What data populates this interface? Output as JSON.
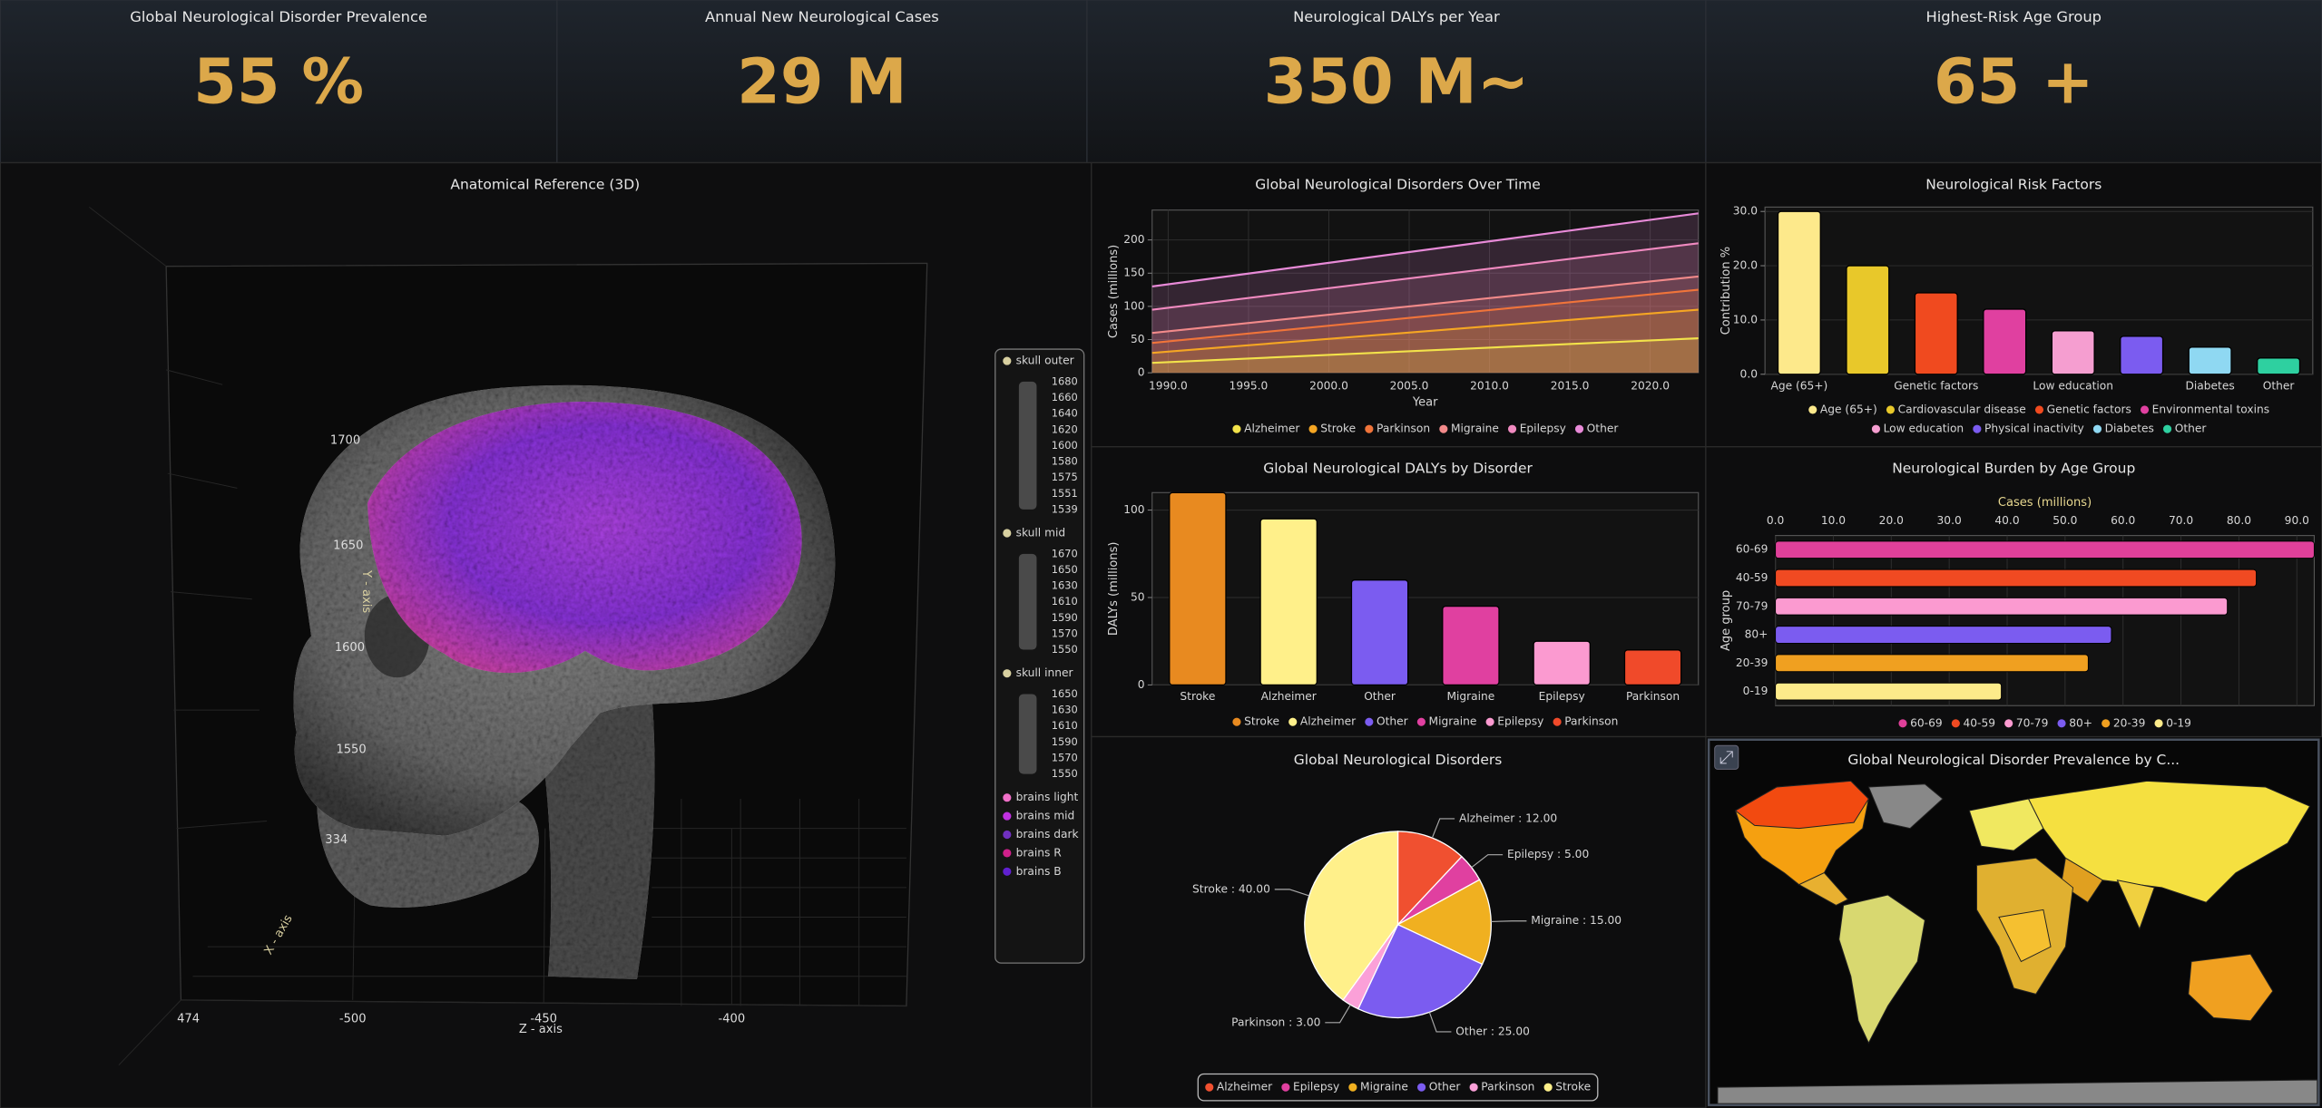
{
  "kpis": [
    {
      "title": "Global Neurological Disorder Prevalence",
      "value": "55 %"
    },
    {
      "title": "Annual New Neurological Cases",
      "value": "29 M"
    },
    {
      "title": "Neurological DALYs per Year",
      "value": "350 M~"
    },
    {
      "title": "Highest-Risk Age Group",
      "value": "65 +"
    }
  ],
  "anatomy": {
    "title": "Anatomical Reference (3D)",
    "y_axis": "Y - axis",
    "x_axis": "X - axis",
    "z_axis": "Z - axis",
    "y_ticks": [
      "1700",
      "1650",
      "1600",
      "1550",
      "334"
    ],
    "z_ticks": [
      "474",
      "-500",
      "-450",
      "-400"
    ],
    "legend": [
      {
        "name": "skull outer",
        "scale": [
          "1680",
          "1660",
          "1640",
          "1620",
          "1600",
          "1580",
          "1575",
          "1551",
          "1539"
        ]
      },
      {
        "name": "skull mid",
        "scale": [
          "1670",
          "1650",
          "1630",
          "1610",
          "1590",
          "1570",
          "1550"
        ]
      },
      {
        "name": "skull inner",
        "scale": [
          "1650",
          "1630",
          "1610",
          "1590",
          "1570",
          "1550"
        ]
      },
      {
        "name": "brains light",
        "color": "#f070c8"
      },
      {
        "name": "brains mid",
        "color": "#c030e0"
      },
      {
        "name": "brains dark",
        "color": "#7030c0"
      },
      {
        "name": "brains R",
        "color": "#d0208a"
      },
      {
        "name": "brains B",
        "color": "#6020d0"
      }
    ]
  },
  "chart_data": [
    {
      "type": "line",
      "title": "Global Neurological Disorders Over Time",
      "x_label": "Year",
      "y_label": "Cases (millions)",
      "x": [
        1989,
        2023
      ],
      "series": [
        {
          "name": "Alzheimer",
          "color": "#f2e24a",
          "values": [
            15,
            52
          ]
        },
        {
          "name": "Stroke",
          "color": "#f5a623",
          "values": [
            30,
            95
          ]
        },
        {
          "name": "Parkinson",
          "color": "#f0743a",
          "values": [
            45,
            125
          ]
        },
        {
          "name": "Migraine",
          "color": "#f28a8a",
          "values": [
            60,
            145
          ]
        },
        {
          "name": "Epilepsy",
          "color": "#f08ac0",
          "values": [
            95,
            195
          ]
        },
        {
          "name": "Other",
          "color": "#e88ad8",
          "values": [
            130,
            240
          ]
        }
      ],
      "xlim": [
        1989,
        2023
      ],
      "xticks": [
        {
          "value": 1990,
          "label": "1990.0"
        },
        {
          "value": 1995,
          "label": "1995.0"
        },
        {
          "value": 2000,
          "label": "2000.0"
        },
        {
          "value": 2005,
          "label": "2005.0"
        },
        {
          "value": 2010,
          "label": "2010.0"
        },
        {
          "value": 2015,
          "label": "2015.0"
        },
        {
          "value": 2020,
          "label": "2020.0"
        }
      ],
      "ylim": [
        0,
        245
      ],
      "yticks": [
        0,
        50,
        100,
        150,
        200
      ],
      "grid": true
    },
    {
      "type": "bar",
      "title": "Neurological Risk Factors",
      "y_label": "Contribution %",
      "categories": [
        "Age (65+)",
        "Cardiovascular disease",
        "Genetic factors",
        "Environmental toxins",
        "Low education",
        "Physical inactivity",
        "Diabetes",
        "Other"
      ],
      "values": [
        30,
        20,
        15,
        12,
        8,
        7,
        5,
        3
      ],
      "colors": [
        "#fde98b",
        "#e8c82a",
        "#f04a1f",
        "#e040a0",
        "#f59ed0",
        "#7b5cf0",
        "#8fd8f2",
        "#2ed0a0"
      ],
      "ylim": [
        0,
        30.8
      ],
      "yticks": [
        {
          "value": 0,
          "label": "0.0"
        },
        {
          "value": 10,
          "label": "10.0"
        },
        {
          "value": 20,
          "label": "20.0"
        },
        {
          "value": 30,
          "label": "30.0"
        }
      ],
      "grid": true
    },
    {
      "type": "bar",
      "title": "Global Neurological DALYs by Disorder",
      "y_label": "DALYs (millions)",
      "categories": [
        "Stroke",
        "Alzheimer",
        "Other",
        "Migraine",
        "Epilepsy",
        "Parkinson"
      ],
      "values": [
        110,
        95,
        60,
        45,
        25,
        20
      ],
      "colors": [
        "#e88a20",
        "#fff08a",
        "#7b5cf0",
        "#e040a0",
        "#fb9ad0",
        "#f04a2a"
      ],
      "ylim": [
        0,
        110
      ],
      "yticks": [
        0,
        50,
        100
      ],
      "grid": true
    },
    {
      "type": "barh",
      "title": "Neurological Burden by Age Group",
      "x_label": "Cases (millions)",
      "y_label": "Age group",
      "categories": [
        "60-69",
        "40-59",
        "70-79",
        "80+",
        "20-39",
        "0-19"
      ],
      "values": [
        93,
        83,
        78,
        58,
        54,
        39
      ],
      "colors": [
        "#e0409a",
        "#f04a22",
        "#fb9ad0",
        "#7b5cf0",
        "#f0a020",
        "#fdeb8a"
      ],
      "xlim": [
        0,
        93
      ],
      "xticks": [
        {
          "value": 0,
          "label": "0.0"
        },
        {
          "value": 10,
          "label": "10.0"
        },
        {
          "value": 20,
          "label": "20.0"
        },
        {
          "value": 30,
          "label": "30.0"
        },
        {
          "value": 40,
          "label": "40.0"
        },
        {
          "value": 50,
          "label": "50.0"
        },
        {
          "value": 60,
          "label": "60.0"
        },
        {
          "value": 70,
          "label": "70.0"
        },
        {
          "value": 80,
          "label": "80.0"
        },
        {
          "value": 90,
          "label": "90.0"
        }
      ],
      "grid": true
    },
    {
      "type": "pie",
      "title": "Global Neurological Disorders",
      "categories": [
        "Alzheimer",
        "Epilepsy",
        "Migraine",
        "Other",
        "Parkinson",
        "Stroke"
      ],
      "values": [
        12,
        5,
        15,
        25,
        3,
        40
      ],
      "value_labels": [
        "Alzheimer : 12.00",
        "Epilepsy : 5.00",
        "Migraine : 15.00",
        "Other : 25.00",
        "Parkinson : 3.00",
        "Stroke : 40.00"
      ],
      "colors": [
        "#f05030",
        "#e040a0",
        "#f0b020",
        "#7b5cf0",
        "#fba0d8",
        "#fff08a"
      ]
    }
  ],
  "map": {
    "title": "Global Neurological Disorder Prevalence by C..."
  }
}
